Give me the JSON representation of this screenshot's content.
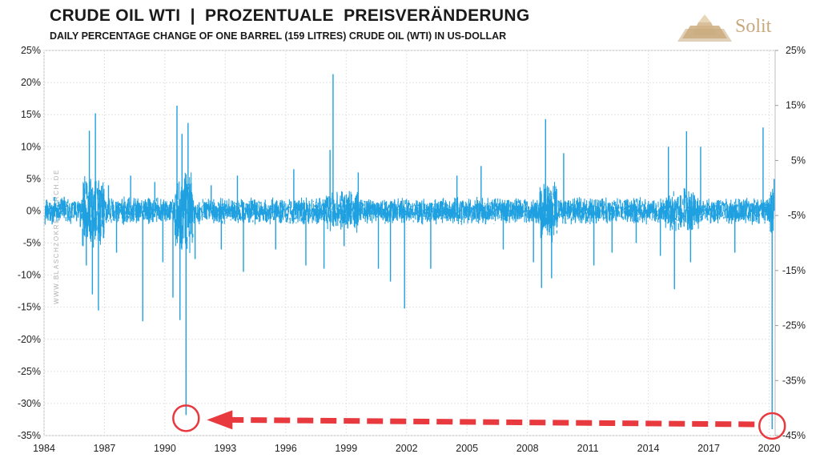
{
  "chart_data": {
    "type": "line",
    "title": "CRUDE OIL WTI  |  PROZENTUALE  PREISVERÄNDERUNG",
    "subtitle": "DAILY PERCENTAGE CHANGE OF ONE BARREL (159 LITRES) CRUDE OIL (WTI) IN US-DOLLAR",
    "xlim": [
      1984,
      2020.3
    ],
    "ylim": [
      -35,
      25
    ],
    "y2lim": [
      -45,
      25
    ],
    "x_ticks": [
      "1984",
      "1987",
      "1990",
      "1993",
      "1996",
      "1999",
      "2002",
      "2005",
      "2008",
      "2011",
      "2014",
      "2017",
      "2020"
    ],
    "y_ticks": [
      "25%",
      "20%",
      "15%",
      "10%",
      "5%",
      "0%",
      "-5%",
      "-10%",
      "-15%",
      "-20%",
      "-25%",
      "-30%",
      "-35%"
    ],
    "y2_ticks": [
      "25%",
      "15%",
      "5%",
      "-5%",
      "-15%",
      "-25%",
      "-35%",
      "-45%"
    ],
    "grid": true,
    "series_color": "#1fa0e0",
    "series": [
      {
        "values": [
          {
            "x": 1984.2,
            "y": -1.5
          },
          {
            "x": 1985.0,
            "y": 2.2
          },
          {
            "x": 1985.8,
            "y": -2.5
          },
          {
            "x": 1986.1,
            "y": -8.5
          },
          {
            "x": 1986.25,
            "y": 12.5
          },
          {
            "x": 1986.4,
            "y": -13.0
          },
          {
            "x": 1986.55,
            "y": 15.2
          },
          {
            "x": 1986.7,
            "y": -15.5
          },
          {
            "x": 1987.2,
            "y": 4.0
          },
          {
            "x": 1987.6,
            "y": -6.5
          },
          {
            "x": 1988.3,
            "y": 5.5
          },
          {
            "x": 1988.9,
            "y": -17.2
          },
          {
            "x": 1989.5,
            "y": 4.5
          },
          {
            "x": 1989.9,
            "y": -8.0
          },
          {
            "x": 1990.4,
            "y": -13.5
          },
          {
            "x": 1990.6,
            "y": 16.4
          },
          {
            "x": 1990.75,
            "y": -17.0
          },
          {
            "x": 1990.85,
            "y": 12.0
          },
          {
            "x": 1991.05,
            "y": -31.8
          },
          {
            "x": 1991.15,
            "y": 13.7
          },
          {
            "x": 1991.5,
            "y": -7.5
          },
          {
            "x": 1992.3,
            "y": 4.0
          },
          {
            "x": 1992.8,
            "y": -6.0
          },
          {
            "x": 1993.6,
            "y": 5.5
          },
          {
            "x": 1993.9,
            "y": -9.5
          },
          {
            "x": 1995.5,
            "y": -6.0
          },
          {
            "x": 1996.4,
            "y": 6.5
          },
          {
            "x": 1997.0,
            "y": -8.5
          },
          {
            "x": 1997.9,
            "y": -9.0
          },
          {
            "x": 1998.2,
            "y": 9.5
          },
          {
            "x": 1998.35,
            "y": 21.3
          },
          {
            "x": 1998.9,
            "y": -5.5
          },
          {
            "x": 1999.6,
            "y": 6.0
          },
          {
            "x": 2000.6,
            "y": -9.0
          },
          {
            "x": 2001.2,
            "y": -11.0
          },
          {
            "x": 2001.9,
            "y": -15.2
          },
          {
            "x": 2003.2,
            "y": -9.0
          },
          {
            "x": 2004.5,
            "y": 5.5
          },
          {
            "x": 2005.7,
            "y": 7.0
          },
          {
            "x": 2006.8,
            "y": -6.0
          },
          {
            "x": 2008.3,
            "y": -8.0
          },
          {
            "x": 2008.7,
            "y": -12.0
          },
          {
            "x": 2008.9,
            "y": 14.3
          },
          {
            "x": 2009.2,
            "y": -10.5
          },
          {
            "x": 2009.8,
            "y": 9.0
          },
          {
            "x": 2011.3,
            "y": -8.5
          },
          {
            "x": 2012.2,
            "y": -6.5
          },
          {
            "x": 2013.4,
            "y": -5.0
          },
          {
            "x": 2014.6,
            "y": -7.0
          },
          {
            "x": 2015.0,
            "y": 10.0
          },
          {
            "x": 2015.3,
            "y": -12.2
          },
          {
            "x": 2015.9,
            "y": 12.4
          },
          {
            "x": 2016.1,
            "y": -8.0
          },
          {
            "x": 2016.6,
            "y": 10.0
          },
          {
            "x": 2018.3,
            "y": -6.5
          },
          {
            "x": 2019.7,
            "y": 13.0
          },
          {
            "x": 2020.15,
            "y": -34.0
          },
          {
            "x": 2020.25,
            "y": 5.0
          }
        ]
      }
    ]
  },
  "logo": {
    "text": "Solit",
    "color": "#c8a97e"
  },
  "watermark": "WWW.BLASCHZOKRESEARCH.DE",
  "annotations": {
    "highlight_color": "#e8393f"
  }
}
